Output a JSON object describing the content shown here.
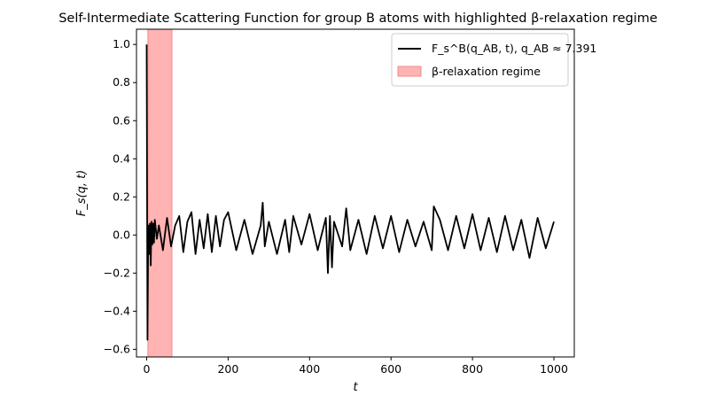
{
  "chart_data": {
    "type": "line",
    "title": "Self-Intermediate Scattering Function for group B atoms with highlighted β-relaxation regime",
    "xlabel": "t",
    "ylabel": "F_s(q, t)",
    "xlim": [
      -25,
      1050
    ],
    "ylim": [
      -0.64,
      1.08
    ],
    "xticks": [
      0,
      200,
      400,
      600,
      800,
      1000
    ],
    "yticks": [
      -0.6,
      -0.4,
      -0.2,
      0.0,
      0.2,
      0.4,
      0.6,
      0.8,
      1.0
    ],
    "xtick_labels": [
      "0",
      "200",
      "400",
      "600",
      "800",
      "1000"
    ],
    "ytick_labels": [
      "−0.6",
      "−0.4",
      "−0.2",
      "0.0",
      "0.2",
      "0.4",
      "0.6",
      "0.8",
      "1.0"
    ],
    "grid": false,
    "legend_position": "top-right",
    "colors": {
      "line": "#000000",
      "band_fill": "#ffb3b3",
      "band_edge": "#f08a8a"
    },
    "highlight_band": {
      "x_start": 3,
      "x_end": 62,
      "label": "β-relaxation regime"
    },
    "series": [
      {
        "name": "F_s^B(q_AB, t), q_AB ≈ 7.391",
        "x": [
          0,
          2,
          4,
          6,
          8,
          10,
          12,
          14,
          16,
          18,
          20,
          25,
          30,
          40,
          50,
          60,
          70,
          80,
          90,
          100,
          110,
          120,
          130,
          140,
          150,
          160,
          170,
          180,
          190,
          200,
          220,
          240,
          260,
          280,
          285,
          290,
          300,
          320,
          340,
          350,
          360,
          380,
          400,
          420,
          440,
          445,
          450,
          455,
          460,
          480,
          490,
          500,
          520,
          540,
          560,
          580,
          600,
          620,
          640,
          660,
          680,
          700,
          705,
          720,
          740,
          760,
          780,
          800,
          820,
          840,
          860,
          880,
          900,
          920,
          940,
          960,
          980,
          1000
        ],
        "y": [
          1.0,
          -0.55,
          0.05,
          -0.1,
          0.06,
          -0.16,
          0.07,
          -0.05,
          0.06,
          -0.04,
          0.08,
          -0.02,
          0.05,
          -0.08,
          0.09,
          -0.06,
          0.05,
          0.1,
          -0.09,
          0.07,
          0.12,
          -0.1,
          0.08,
          -0.07,
          0.11,
          -0.09,
          0.1,
          -0.06,
          0.08,
          0.12,
          -0.08,
          0.08,
          -0.1,
          0.05,
          0.17,
          -0.06,
          0.07,
          -0.1,
          0.08,
          -0.09,
          0.1,
          -0.05,
          0.11,
          -0.08,
          0.09,
          -0.2,
          0.1,
          -0.17,
          0.07,
          -0.06,
          0.14,
          -0.08,
          0.08,
          -0.1,
          0.1,
          -0.07,
          0.1,
          -0.09,
          0.08,
          -0.06,
          0.07,
          -0.08,
          0.15,
          0.08,
          -0.08,
          0.1,
          -0.07,
          0.11,
          -0.08,
          0.09,
          -0.09,
          0.1,
          -0.08,
          0.08,
          -0.12,
          0.09,
          -0.07,
          0.07
        ]
      }
    ]
  }
}
